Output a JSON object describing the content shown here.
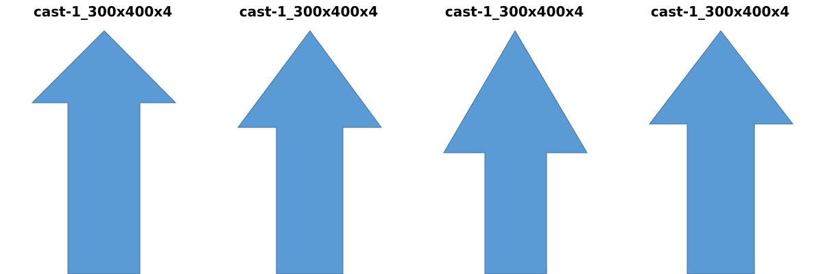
{
  "colors": {
    "arrow_fill": "#5b9bd5",
    "arrow_stroke": "#41719c",
    "divider": "#d9d9d9",
    "background": "#ffffff",
    "title_text": "#000000"
  },
  "panels": [
    {
      "title": "cast-1_300x400x4",
      "icon": "up-arrow-icon"
    },
    {
      "title": "cast-1_300x400x4",
      "icon": "up-arrow-icon"
    },
    {
      "title": "cast-1_300x400x4",
      "icon": "up-arrow-icon"
    },
    {
      "title": "cast-1_300x400x4",
      "icon": "up-arrow-icon"
    }
  ]
}
